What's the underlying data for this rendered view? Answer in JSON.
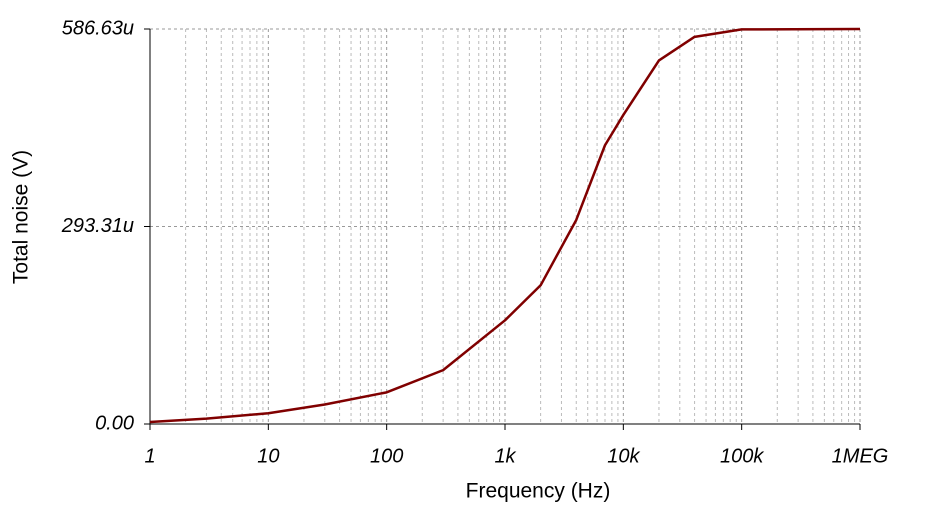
{
  "chart_data": {
    "type": "line",
    "xlabel": "Frequency (Hz)",
    "ylabel": "Total noise (V)",
    "xscale": "log",
    "grid": true,
    "xlim": [
      1,
      1000000
    ],
    "xticks": [
      1,
      10,
      100,
      {
        "value": 1000,
        "label": "1k"
      },
      {
        "value": 10000,
        "label": "10k"
      },
      {
        "value": 100000,
        "label": "100k"
      },
      {
        "value": 1000000,
        "label": "1MEG"
      }
    ],
    "ylim": [
      0,
      0.00058663
    ],
    "yticks": [
      {
        "value": 0,
        "label": "0.00"
      },
      {
        "value": 0.00029331,
        "label": "293.31u"
      },
      {
        "value": 0.00058663,
        "label": "586.63u"
      }
    ],
    "x": [
      1,
      3,
      10,
      30,
      100,
      300,
      1000,
      2000,
      4000,
      7000,
      10000,
      20000,
      40000,
      100000,
      1000000
    ],
    "series": [
      {
        "color": "#800000",
        "values": [
          3e-06,
          8e-06,
          1.6e-05,
          2.9e-05,
          4.7e-05,
          8e-05,
          0.000154,
          0.000206,
          0.000303,
          0.000414,
          0.000459,
          0.00054,
          0.000575,
          0.000586,
          0.00058663
        ]
      }
    ]
  }
}
